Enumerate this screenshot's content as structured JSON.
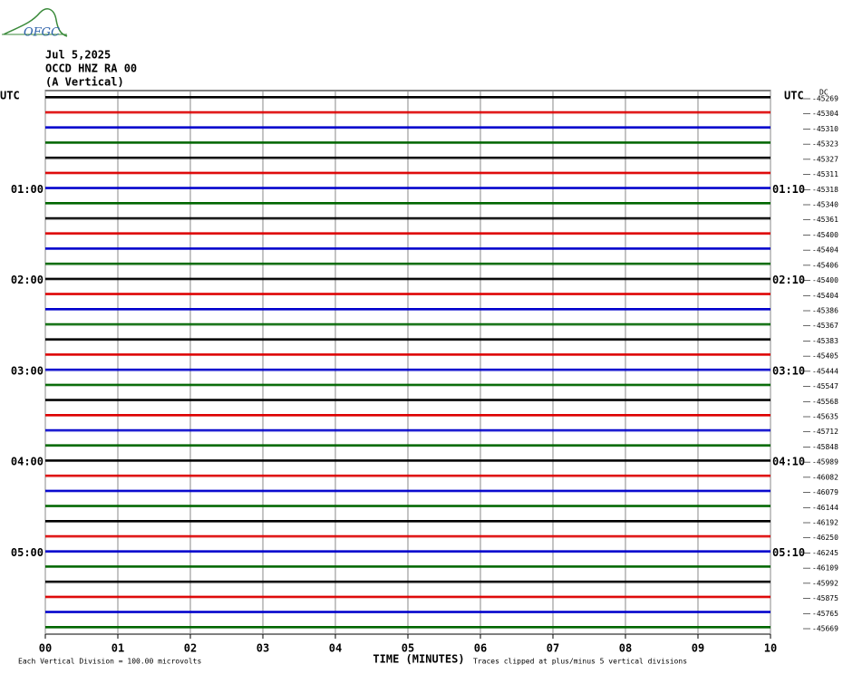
{
  "logo": "OFGC",
  "chart_data": {
    "type": "helicorder",
    "date": "Jul 5,2025",
    "station": "OCCD HNZ RA 00",
    "component": "(A Vertical)",
    "offset_header": "DC",
    "xlabel": "TIME (MINUTES)",
    "scale_note": "Each Vertical Division =  100.00 microvolts",
    "clip_note": "Traces clipped at plus/minus 5 vertical divisions",
    "xlim": [
      0,
      10
    ],
    "xticks": [
      {
        "value": 0,
        "label": "00"
      },
      {
        "value": 1,
        "label": "01"
      },
      {
        "value": 2,
        "label": "02"
      },
      {
        "value": 3,
        "label": "03"
      },
      {
        "value": 4,
        "label": "04"
      },
      {
        "value": 5,
        "label": "05"
      },
      {
        "value": 6,
        "label": "06"
      },
      {
        "value": 7,
        "label": "07"
      },
      {
        "value": 8,
        "label": "08"
      },
      {
        "value": 9,
        "label": "09"
      },
      {
        "value": 10,
        "label": "10"
      }
    ],
    "grid": true,
    "colors": [
      "#000000",
      "#dd0000",
      "#0000cc",
      "#006600"
    ],
    "left_labels": [
      "UTC",
      null,
      null,
      null,
      null,
      null,
      "01:00",
      null,
      null,
      null,
      null,
      null,
      "02:00",
      null,
      null,
      null,
      null,
      null,
      "03:00",
      null,
      null,
      null,
      null,
      null,
      "04:00",
      null,
      null,
      null,
      null,
      null,
      "05:00",
      null,
      null,
      null,
      null,
      null
    ],
    "right_labels": [
      "UTC",
      null,
      null,
      null,
      null,
      null,
      "01:10",
      null,
      null,
      null,
      null,
      null,
      "02:10",
      null,
      null,
      null,
      null,
      null,
      "03:10",
      null,
      null,
      null,
      null,
      null,
      "04:10",
      null,
      null,
      null,
      null,
      null,
      "05:10",
      null,
      null,
      null,
      null,
      null
    ],
    "offsets": [
      -45269,
      -45304,
      -45310,
      -45323,
      -45327,
      -45311,
      -45318,
      -45340,
      -45361,
      -45400,
      -45404,
      -45406,
      -45400,
      -45404,
      -45386,
      -45367,
      -45383,
      -45405,
      -45444,
      -45547,
      -45568,
      -45635,
      -45712,
      -45848,
      -45989,
      -46082,
      -46079,
      -46144,
      -46192,
      -46250,
      -46245,
      -46109,
      -45992,
      -45875,
      -45765,
      -45669
    ]
  }
}
